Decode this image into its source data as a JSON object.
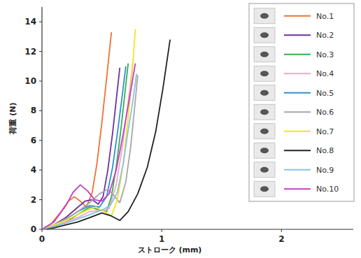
{
  "chart_data": {
    "type": "line",
    "x_label": "ストローク (mm)",
    "y_label": "荷重 (N)",
    "xlim": [
      0,
      2.6
    ],
    "xticks": [
      0,
      1,
      2
    ],
    "ylim": [
      0,
      15
    ],
    "yticks": [
      0,
      2,
      4,
      6,
      8,
      10,
      12,
      14
    ],
    "grid": false,
    "legend": "upper right",
    "series": [
      {
        "name": "No.1",
        "color": "#f07232",
        "x": [
          0,
          0.08,
          0.16,
          0.22,
          0.27,
          0.32,
          0.37,
          0.42,
          0.46,
          0.5,
          0.54,
          0.58
        ],
        "values": [
          0,
          0.4,
          1.2,
          1.9,
          2.2,
          1.9,
          1.5,
          2.5,
          4.5,
          7.2,
          10.2,
          13.3
        ]
      },
      {
        "name": "No.2",
        "color": "#7030a0",
        "x": [
          0,
          0.1,
          0.2,
          0.3,
          0.36,
          0.42,
          0.47,
          0.51,
          0.55,
          0.59,
          0.62,
          0.65
        ],
        "values": [
          0,
          0.3,
          0.8,
          1.5,
          1.9,
          2.0,
          1.7,
          2.2,
          4.0,
          6.5,
          8.7,
          10.9
        ]
      },
      {
        "name": "No.3",
        "color": "#33b04a",
        "x": [
          0,
          0.1,
          0.2,
          0.3,
          0.4,
          0.48,
          0.54,
          0.58,
          0.62,
          0.66,
          0.69,
          0.72
        ],
        "values": [
          0,
          0.2,
          0.5,
          1.0,
          1.5,
          1.3,
          1.2,
          2.2,
          4.2,
          6.8,
          9.0,
          11.2
        ]
      },
      {
        "name": "No.4",
        "color": "#f4a6c6",
        "x": [
          0,
          0.1,
          0.2,
          0.3,
          0.4,
          0.5,
          0.56,
          0.62,
          0.67,
          0.71,
          0.74,
          0.76
        ],
        "values": [
          0,
          0.2,
          0.5,
          0.8,
          1.2,
          1.3,
          1.4,
          3.0,
          5.5,
          8.0,
          9.9,
          11.3
        ]
      },
      {
        "name": "No.5",
        "color": "#2f8fd0",
        "x": [
          0,
          0.1,
          0.2,
          0.3,
          0.4,
          0.48,
          0.54,
          0.59,
          0.63,
          0.67,
          0.7
        ],
        "values": [
          0,
          0.3,
          0.7,
          1.2,
          1.6,
          1.5,
          2.2,
          4.2,
          6.5,
          9.0,
          11.0
        ]
      },
      {
        "name": "No.6",
        "color": "#a6a6a6",
        "x": [
          0,
          0.1,
          0.2,
          0.3,
          0.4,
          0.48,
          0.55,
          0.6,
          0.65,
          0.7,
          0.74,
          0.77,
          0.8
        ],
        "values": [
          0,
          0.3,
          0.7,
          1.2,
          1.8,
          2.4,
          2.7,
          2.3,
          1.8,
          3.2,
          5.5,
          7.9,
          10.4
        ]
      },
      {
        "name": "No.7",
        "color": "#f2e41e",
        "x": [
          0,
          0.1,
          0.2,
          0.3,
          0.38,
          0.45,
          0.52,
          0.58,
          0.63,
          0.68,
          0.72,
          0.75,
          0.78
        ],
        "values": [
          0,
          0.3,
          0.6,
          1.0,
          1.3,
          1.5,
          1.2,
          0.9,
          2.0,
          4.5,
          7.5,
          10.2,
          13.5
        ]
      },
      {
        "name": "No.8",
        "color": "#222222",
        "x": [
          0,
          0.1,
          0.2,
          0.3,
          0.4,
          0.5,
          0.58,
          0.65,
          0.72,
          0.8,
          0.88,
          0.95,
          1.01,
          1.07
        ],
        "values": [
          0,
          0.1,
          0.3,
          0.5,
          0.8,
          1.1,
          0.9,
          0.6,
          1.2,
          2.4,
          4.2,
          6.6,
          9.5,
          12.8
        ]
      },
      {
        "name": "No.9",
        "color": "#86c3e6",
        "x": [
          0,
          0.1,
          0.2,
          0.3,
          0.4,
          0.5,
          0.57,
          0.63,
          0.68,
          0.72,
          0.76,
          0.79
        ],
        "values": [
          0,
          0.2,
          0.4,
          0.7,
          1.0,
          1.3,
          1.6,
          2.5,
          4.5,
          6.7,
          8.7,
          10.5
        ]
      },
      {
        "name": "No.10",
        "color": "#c43fc4",
        "x": [
          0,
          0.1,
          0.2,
          0.26,
          0.32,
          0.38,
          0.44,
          0.5,
          0.56,
          0.62,
          0.68,
          0.73,
          0.78
        ],
        "values": [
          0,
          0.5,
          1.6,
          2.5,
          3.0,
          2.6,
          2.0,
          1.9,
          2.4,
          4.0,
          6.5,
          8.8,
          11.2
        ]
      }
    ]
  }
}
